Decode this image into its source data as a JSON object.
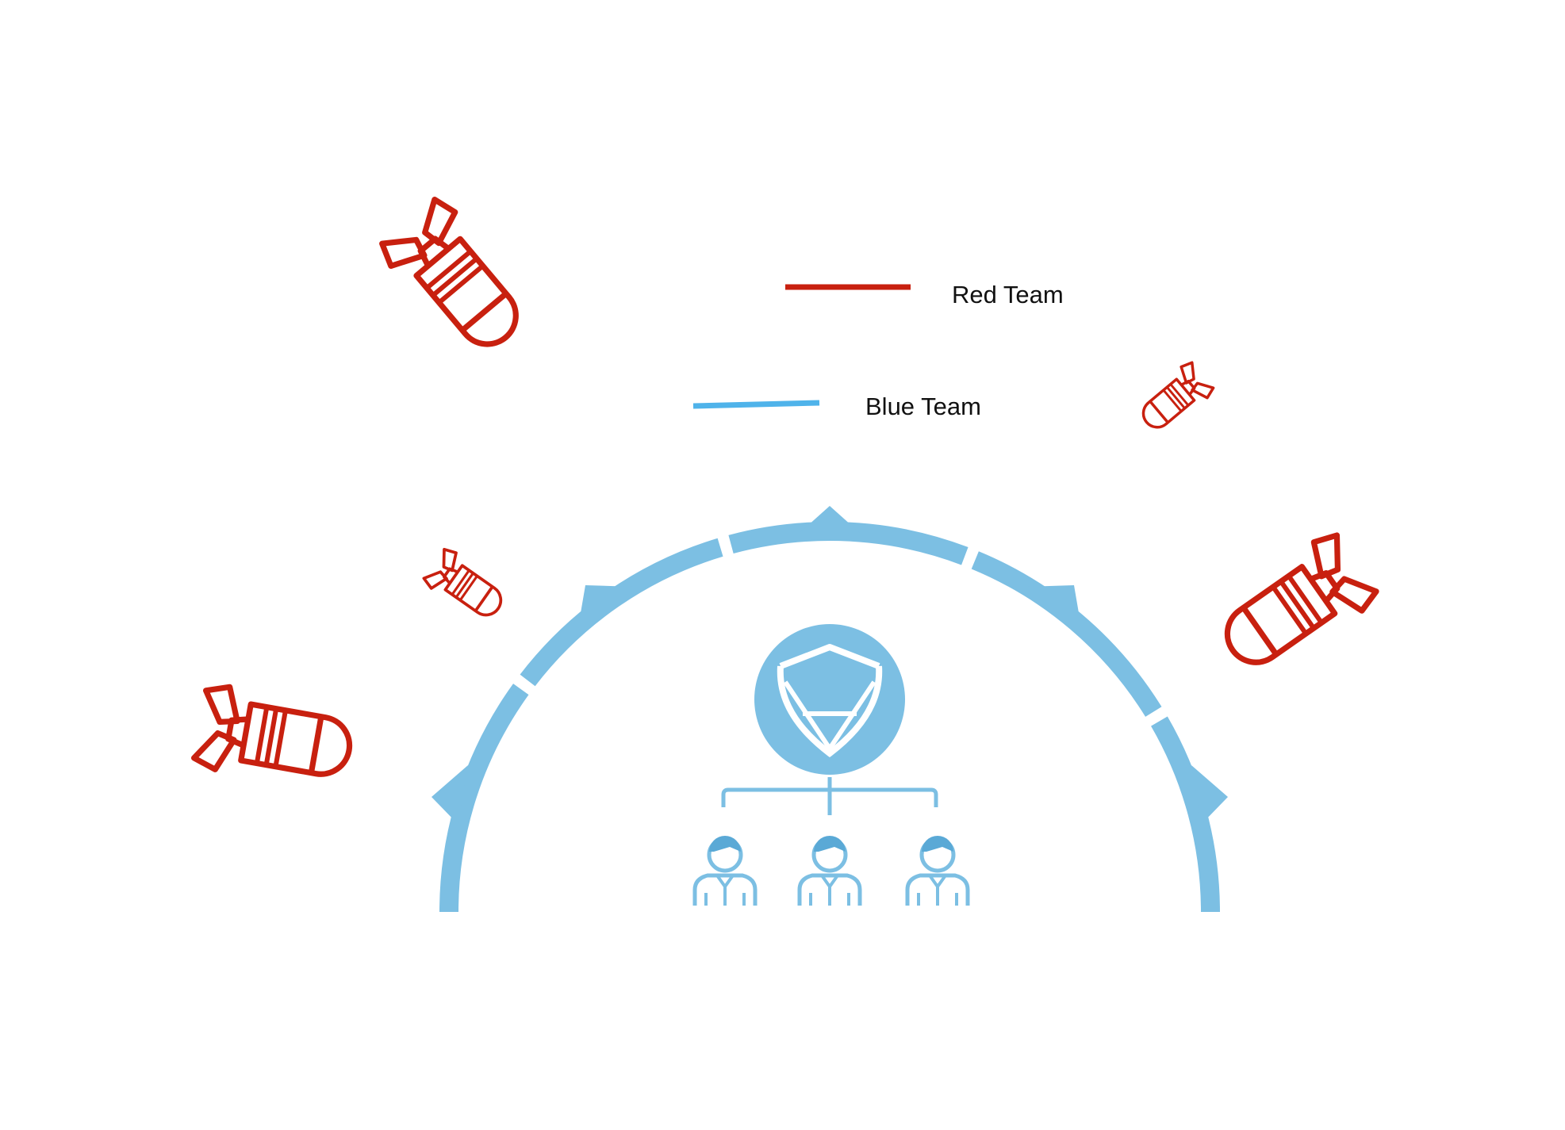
{
  "legend": {
    "items": [
      {
        "label": "Red Team",
        "color": "#c8200f",
        "meaning": "attackers"
      },
      {
        "label": "Blue Team",
        "color": "#4fb3ea",
        "meaning": "defenders"
      }
    ]
  },
  "colors": {
    "red": "#c8200f",
    "blue_line": "#4fb3ea",
    "shield_blue": "#7cbfe3",
    "shield_dark": "#5aa9d6"
  },
  "icons": {
    "attack": "bomb-icon",
    "defense_dome": "shield-dome",
    "emblem": "defense-emblem-icon",
    "team": "person-icon"
  }
}
